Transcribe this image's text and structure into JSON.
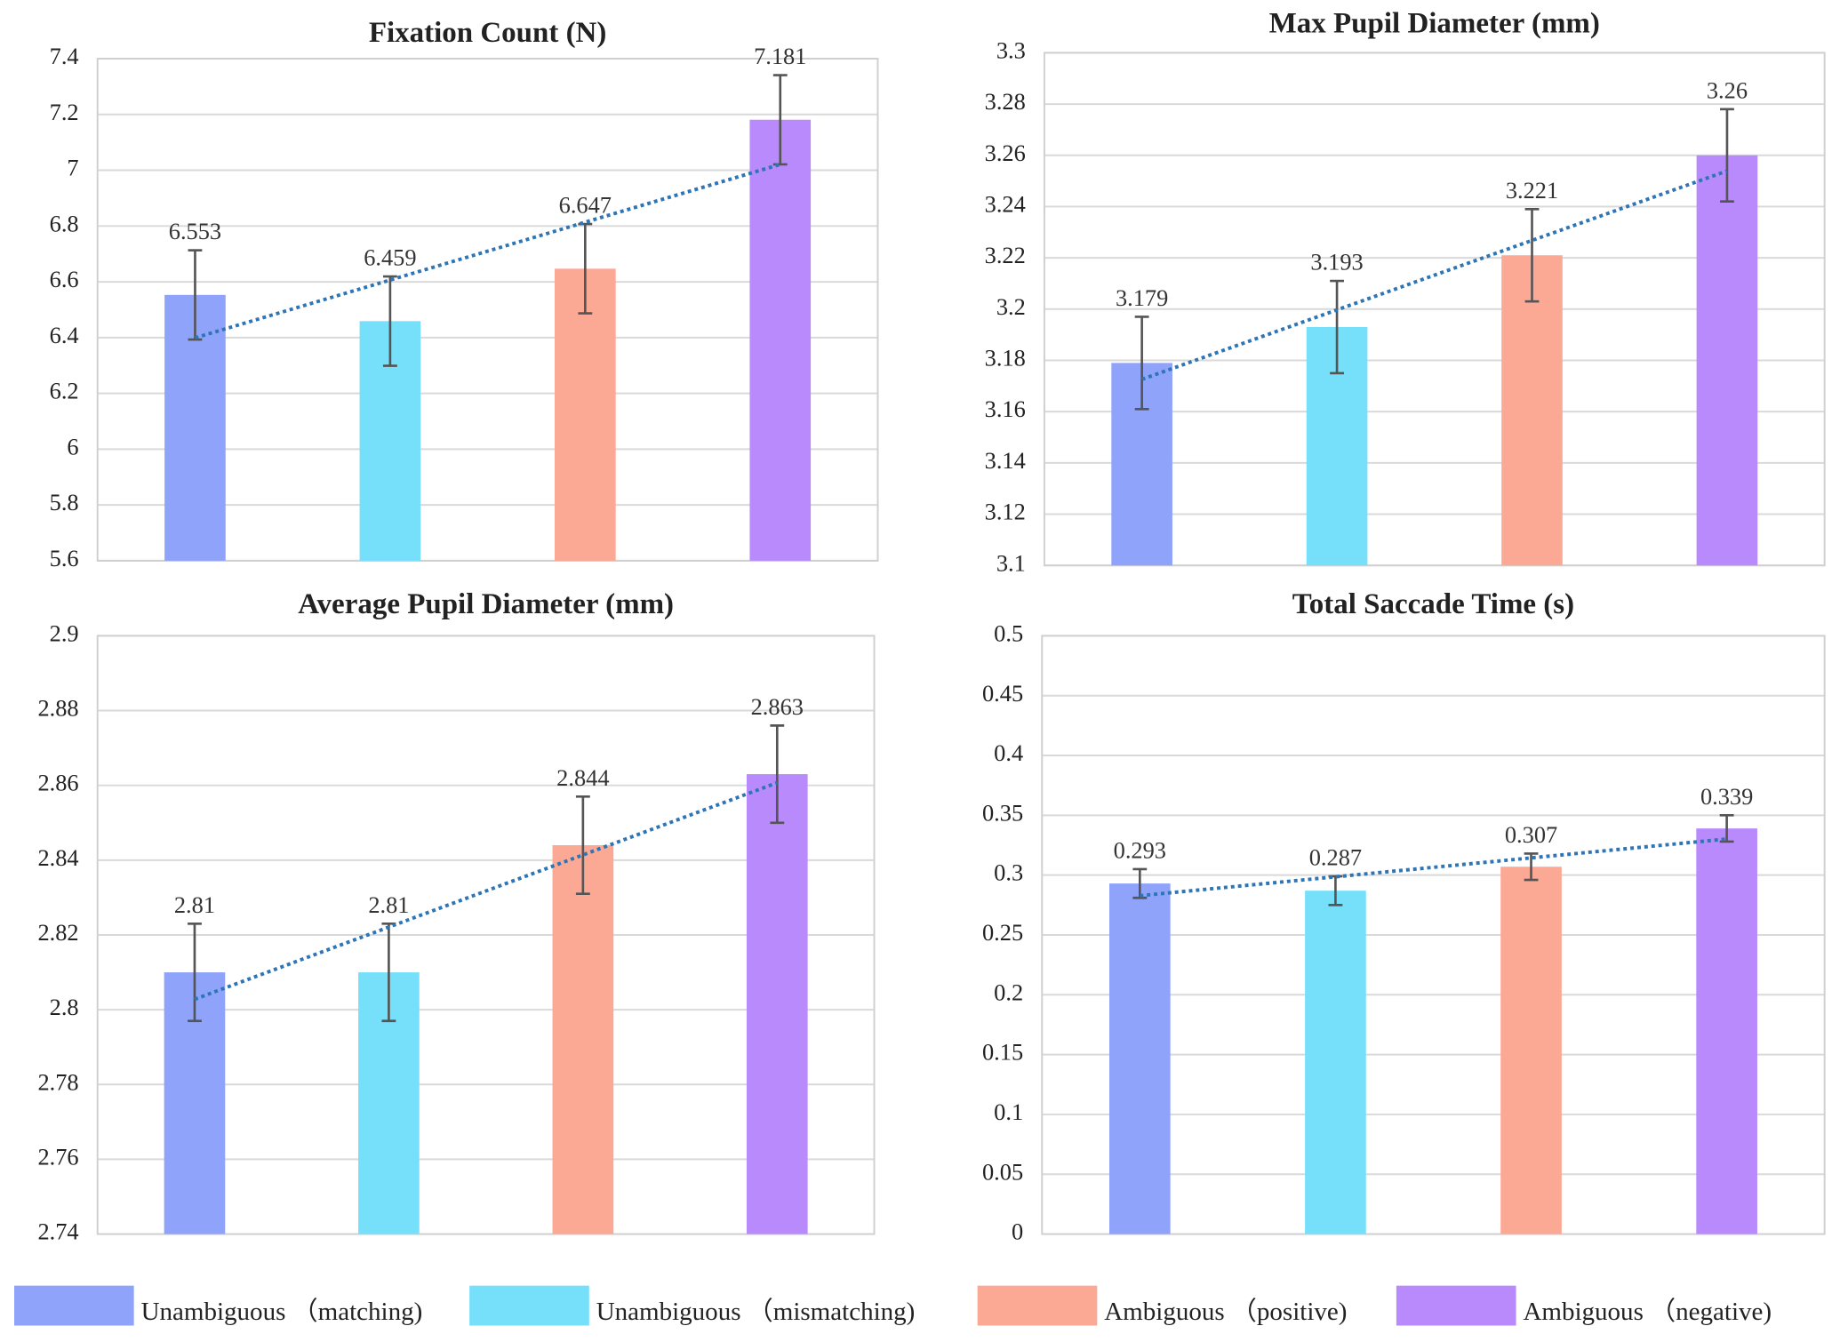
{
  "chart_data": [
    {
      "type": "bar",
      "title": "Fixation Count (N)",
      "values": [
        6.553,
        6.459,
        6.647,
        7.181
      ],
      "errors": [
        0.16,
        0.16,
        0.16,
        0.16
      ],
      "ylim": [
        5.6,
        7.4
      ],
      "yticks": [
        5.6,
        5.8,
        6,
        6.2,
        6.4,
        6.6,
        6.8,
        7,
        7.2,
        7.4
      ],
      "grid": true,
      "trendline": true,
      "trendline_color": "#2e75b6"
    },
    {
      "type": "bar",
      "title": "Max Pupil Diameter (mm)",
      "values": [
        3.179,
        3.193,
        3.221,
        3.26
      ],
      "errors": [
        0.018,
        0.018,
        0.018,
        0.018
      ],
      "ylim": [
        3.1,
        3.3
      ],
      "yticks": [
        3.1,
        3.12,
        3.14,
        3.16,
        3.18,
        3.2,
        3.22,
        3.24,
        3.26,
        3.28,
        3.3
      ],
      "grid": true,
      "trendline": true,
      "trendline_color": "#2e75b6"
    },
    {
      "type": "bar",
      "title": "Average Pupil Diameter (mm)",
      "values": [
        2.81,
        2.81,
        2.844,
        2.863
      ],
      "errors": [
        0.013,
        0.013,
        0.013,
        0.013
      ],
      "ylim": [
        2.74,
        2.9
      ],
      "yticks": [
        2.74,
        2.76,
        2.78,
        2.8,
        2.82,
        2.84,
        2.86,
        2.88,
        2.9
      ],
      "grid": true,
      "trendline": true,
      "trendline_color": "#2e75b6"
    },
    {
      "type": "bar",
      "title": "Total Saccade Time (s)",
      "values": [
        0.293,
        0.287,
        0.307,
        0.339
      ],
      "errors": [
        0.012,
        0.012,
        0.011,
        0.011
      ],
      "ylim": [
        0,
        0.5
      ],
      "yticks": [
        0,
        0.05,
        0.1,
        0.15,
        0.2,
        0.25,
        0.3,
        0.35,
        0.4,
        0.45,
        0.5
      ],
      "grid": true,
      "trendline": true,
      "trendline_color": "#2e75b6"
    }
  ],
  "legend": {
    "labels": [
      "Unambiguous （matching)",
      "Unambiguous （mismatching)",
      "Ambiguous （positive)",
      "Ambiguous （negative)"
    ],
    "colors": [
      "#8fa3fb",
      "#76e0fb",
      "#fba895",
      "#b98afb"
    ]
  }
}
